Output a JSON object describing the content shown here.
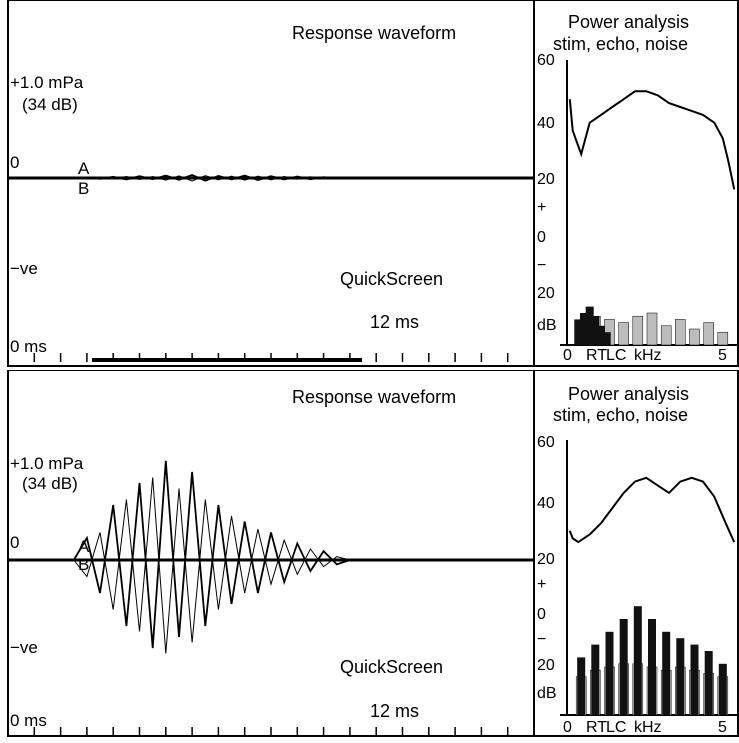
{
  "panels": [
    {
      "waveform": {
        "title": "Response waveform",
        "amplitude_label": "+1.0 mPa",
        "amplitude_db": "(34 dB)",
        "zero_label": "0",
        "neg_label": "−ve",
        "trace_a_label": "A",
        "trace_b_label": "B",
        "mode_label": "QuickScreen",
        "duration_label": "12 ms",
        "time_start_label": "0 ms"
      },
      "power": {
        "title_line1": "Power analysis",
        "title_line2": "stim, echo, noise",
        "y_labels": [
          "60",
          "40",
          "20",
          "+",
          "0",
          "−",
          "20",
          "dB"
        ],
        "x_labels": [
          "0",
          "RT",
          "LC",
          "kHz",
          "5"
        ]
      }
    },
    {
      "waveform": {
        "title": "Response waveform",
        "amplitude_label": "+1.0 mPa",
        "amplitude_db": "(34 dB)",
        "zero_label": "0",
        "neg_label": "−ve",
        "trace_a_label": "A",
        "trace_b_label": "B",
        "mode_label": "QuickScreen",
        "duration_label": "12 ms",
        "time_start_label": "0 ms"
      },
      "power": {
        "title_line1": "Power analysis",
        "title_line2": "stim, echo, noise",
        "y_labels": [
          "60",
          "40",
          "20",
          "+",
          "0",
          "−",
          "20",
          "dB"
        ],
        "x_labels": [
          "0",
          "RT",
          "LC",
          "kHz",
          "5"
        ]
      }
    }
  ],
  "chart_data": [
    {
      "type": "line",
      "title": "Response waveform",
      "x_unit": "ms",
      "xlim": [
        0,
        20
      ],
      "ylim": [
        -1.0,
        1.0
      ],
      "series": [
        {
          "name": "A",
          "x": [
            2.5,
            3,
            3.5,
            4,
            4.5,
            5,
            5.5,
            6,
            6.5,
            7,
            7.5,
            8,
            8.5,
            9,
            9.5,
            10,
            10.5,
            11,
            11.5,
            12,
            12.5,
            13
          ],
          "values": [
            0,
            0.02,
            -0.03,
            0.04,
            -0.05,
            0.06,
            -0.04,
            0.08,
            -0.06,
            0.1,
            -0.09,
            0.07,
            -0.05,
            0.08,
            -0.07,
            0.06,
            -0.05,
            0.05,
            -0.04,
            0.03,
            -0.02,
            0
          ]
        },
        {
          "name": "B",
          "x": [
            2.5,
            3,
            3.5,
            4,
            4.5,
            5,
            5.5,
            6,
            6.5,
            7,
            7.5,
            8,
            8.5,
            9,
            9.5,
            10,
            10.5,
            11,
            11.5,
            12,
            12.5,
            13
          ],
          "values": [
            0,
            -0.02,
            0.03,
            -0.03,
            0.05,
            -0.05,
            0.05,
            -0.07,
            0.07,
            -0.1,
            0.08,
            -0.06,
            0.06,
            -0.07,
            0.06,
            -0.06,
            0.05,
            -0.04,
            0.04,
            -0.03,
            0.02,
            0
          ]
        }
      ]
    },
    {
      "type": "area",
      "title": "Power analysis",
      "subtitle": "stim, echo, noise",
      "ylabel": "dB",
      "xlabel": "kHz",
      "xlim": [
        0,
        6
      ],
      "stim_curve": {
        "x": [
          0.1,
          0.2,
          0.3,
          0.5,
          0.8,
          1.2,
          1.6,
          2.0,
          2.4,
          2.8,
          3.2,
          3.6,
          4.0,
          4.4,
          4.8,
          5.2,
          5.5,
          5.7,
          5.9
        ],
        "values": [
          50,
          42,
          40,
          36,
          44,
          46,
          48,
          50,
          52,
          52,
          51,
          49,
          48,
          47,
          46,
          44,
          40,
          34,
          27
        ]
      },
      "echo_bars": {
        "x": [
          0.4,
          0.6,
          0.8,
          1.0,
          1.2,
          1.4
        ],
        "values": [
          8,
          10,
          12,
          9,
          6,
          4
        ]
      },
      "noise_bars": {
        "x": [
          0.5,
          1.0,
          1.5,
          2.0,
          2.5,
          3.0,
          3.5,
          4.0,
          4.5,
          5.0,
          5.5
        ],
        "values": [
          6,
          9,
          8,
          7,
          9,
          10,
          6,
          8,
          5,
          7,
          4
        ]
      }
    },
    {
      "type": "line",
      "title": "Response waveform",
      "x_unit": "ms",
      "xlim": [
        0,
        20
      ],
      "ylim": [
        -1.0,
        1.0
      ],
      "series": [
        {
          "name": "A",
          "x": [
            2.5,
            3,
            3.5,
            4,
            4.5,
            5,
            5.5,
            6,
            6.5,
            7,
            7.5,
            8,
            8.5,
            9,
            9.5,
            10,
            10.5,
            11,
            11.5,
            12,
            12.5,
            13
          ],
          "values": [
            0,
            0.2,
            -0.3,
            0.5,
            -0.6,
            0.7,
            -0.8,
            0.9,
            -0.7,
            0.8,
            -0.6,
            0.5,
            -0.4,
            0.35,
            -0.3,
            0.25,
            -0.2,
            0.15,
            -0.1,
            0.08,
            -0.04,
            0
          ]
        },
        {
          "name": "B",
          "x": [
            2.5,
            3,
            3.5,
            4,
            4.5,
            5,
            5.5,
            6,
            6.5,
            7,
            7.5,
            8,
            8.5,
            9,
            9.5,
            10,
            10.5,
            11,
            11.5,
            12,
            12.5,
            13
          ],
          "values": [
            0,
            -0.15,
            0.25,
            -0.45,
            0.55,
            -0.65,
            0.75,
            -0.85,
            0.65,
            -0.75,
            0.55,
            -0.45,
            0.4,
            -0.3,
            0.28,
            -0.22,
            0.18,
            -0.13,
            0.1,
            -0.06,
            0.03,
            0
          ]
        }
      ]
    },
    {
      "type": "area",
      "title": "Power analysis",
      "subtitle": "stim, echo, noise",
      "ylabel": "dB",
      "xlabel": "kHz",
      "xlim": [
        0,
        6
      ],
      "stim_curve": {
        "x": [
          0.1,
          0.2,
          0.4,
          0.8,
          1.2,
          1.6,
          2.0,
          2.4,
          2.8,
          3.2,
          3.6,
          4.0,
          4.4,
          4.8,
          5.2,
          5.6,
          5.9
        ],
        "values": [
          36,
          34,
          33,
          35,
          38,
          42,
          46,
          49,
          50,
          48,
          46,
          49,
          50,
          49,
          45,
          38,
          33
        ]
      },
      "echo_bars": {
        "x": [
          0.5,
          1.0,
          1.5,
          2.0,
          2.5,
          3.0,
          3.5,
          4.0,
          4.5,
          5.0,
          5.5
        ],
        "values": [
          18,
          22,
          26,
          30,
          34,
          30,
          26,
          24,
          22,
          20,
          16
        ]
      },
      "noise_bars": {
        "x": [
          0.5,
          1.0,
          1.5,
          2.0,
          2.5,
          3.0,
          3.5,
          4.0,
          4.5,
          5.0,
          5.5
        ],
        "values": [
          12,
          14,
          15,
          16,
          16,
          15,
          14,
          15,
          14,
          13,
          12
        ]
      }
    }
  ]
}
